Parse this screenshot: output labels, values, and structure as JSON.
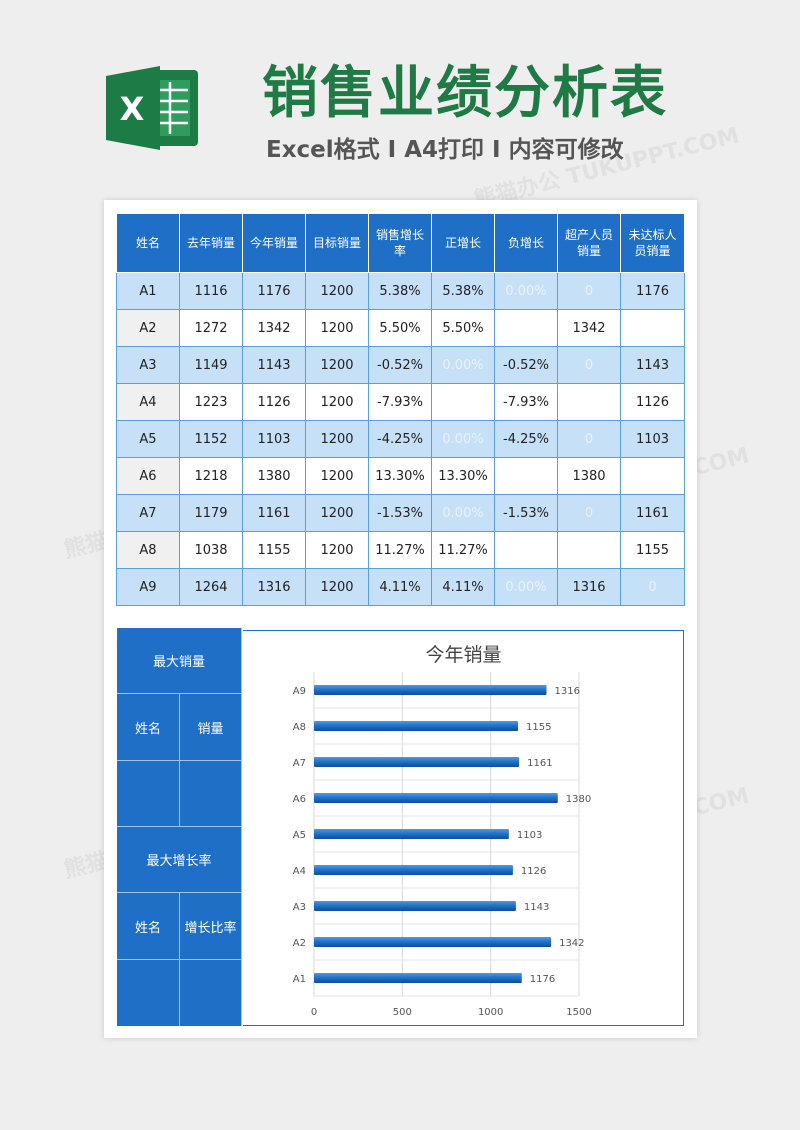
{
  "header": {
    "title": "销售业绩分析表",
    "subtitle": "Excel格式 I A4打印 I 内容可修改",
    "logo_letter": "X",
    "watermark": "熊猫办公 TUKUPPT.COM"
  },
  "table": {
    "headers": [
      "姓名",
      "去年销量",
      "今年销量",
      "目标销量",
      "销售增长率",
      "正增长",
      "负增长",
      "超产人员销量",
      "未达标人员销量"
    ],
    "rows": [
      [
        "A1",
        "1116",
        "1176",
        "1200",
        "5.38%",
        "5.38%",
        "0.00%",
        "0",
        "1176"
      ],
      [
        "A2",
        "1272",
        "1342",
        "1200",
        "5.50%",
        "5.50%",
        "",
        "1342",
        ""
      ],
      [
        "A3",
        "1149",
        "1143",
        "1200",
        "-0.52%",
        "0.00%",
        "-0.52%",
        "0",
        "1143"
      ],
      [
        "A4",
        "1223",
        "1126",
        "1200",
        "-7.93%",
        "",
        "-7.93%",
        "",
        "1126"
      ],
      [
        "A5",
        "1152",
        "1103",
        "1200",
        "-4.25%",
        "0.00%",
        "-4.25%",
        "0",
        "1103"
      ],
      [
        "A6",
        "1218",
        "1380",
        "1200",
        "13.30%",
        "13.30%",
        "",
        "1380",
        ""
      ],
      [
        "A7",
        "1179",
        "1161",
        "1200",
        "-1.53%",
        "0.00%",
        "-1.53%",
        "0",
        "1161"
      ],
      [
        "A8",
        "1038",
        "1155",
        "1200",
        "11.27%",
        "11.27%",
        "",
        "",
        "1155"
      ],
      [
        "A9",
        "1264",
        "1316",
        "1200",
        "4.11%",
        "4.11%",
        "0.00%",
        "1316",
        "0"
      ]
    ],
    "faded_cells": [
      [
        0,
        6
      ],
      [
        0,
        7
      ],
      [
        2,
        5
      ],
      [
        2,
        7
      ],
      [
        4,
        5
      ],
      [
        4,
        7
      ],
      [
        6,
        5
      ],
      [
        6,
        7
      ],
      [
        8,
        6
      ],
      [
        8,
        8
      ]
    ]
  },
  "summary": {
    "max_sales_label": "最大销量",
    "name_label_1": "姓名",
    "sales_label": "销量",
    "max_growth_label": "最大增长率",
    "name_label_2": "姓名",
    "growth_ratio_label": "增长比率"
  },
  "colors": {
    "accent_blue": "#1e6fc5",
    "light_blue": "#c6e0f8",
    "title_green": "#1f7a45",
    "excel_green": "#1d7b45"
  },
  "chart_data": {
    "type": "bar",
    "orientation": "horizontal",
    "title": "今年销量",
    "categories": [
      "A1",
      "A2",
      "A3",
      "A4",
      "A5",
      "A6",
      "A7",
      "A8",
      "A9"
    ],
    "values": [
      1176,
      1342,
      1143,
      1126,
      1103,
      1380,
      1161,
      1155,
      1316
    ],
    "xlim": [
      0,
      1500
    ],
    "xticks": [
      "0",
      "500",
      "1000",
      "1500"
    ],
    "grid": true,
    "data_labels": true
  }
}
